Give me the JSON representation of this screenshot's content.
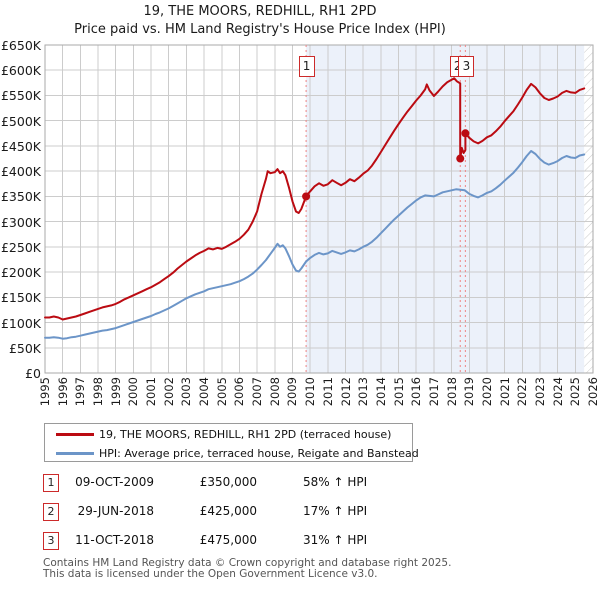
{
  "title": "19, THE MOORS, REDHILL, RH1 2PD",
  "subtitle": "Price paid vs. HM Land Registry's House Price Index (HPI)",
  "colors": {
    "property_line": "#bb0b12",
    "hpi_line": "#6c95c8",
    "marker": "#bb0b12",
    "event_dash": "#ee8585",
    "shaded_region": "#ecf1fa",
    "grid": "#cccccc",
    "frame": "#aaaaaa",
    "hatch": "#c9c9c9",
    "annotation_border": "#cc2a2a"
  },
  "chart_data": {
    "type": "line",
    "title": "19, THE MOORS, REDHILL, RH1 2PD",
    "subtitle": "Price paid vs. HM Land Registry's House Price Index (HPI)",
    "x_axis": {
      "min": 1995,
      "max": 2026,
      "tick_labels": [
        "1995",
        "1996",
        "1997",
        "1998",
        "1999",
        "2000",
        "2001",
        "2002",
        "2003",
        "2004",
        "2005",
        "2006",
        "2007",
        "2008",
        "2009",
        "2010",
        "2011",
        "2012",
        "2013",
        "2014",
        "2015",
        "2016",
        "2017",
        "2018",
        "2019",
        "2020",
        "2021",
        "2022",
        "2023",
        "2024",
        "2025",
        "2026"
      ]
    },
    "y_axis": {
      "min": 0,
      "max": 650000,
      "tick_step": 50000,
      "tick_labels": [
        "£0",
        "£50K",
        "£100K",
        "£150K",
        "£200K",
        "£250K",
        "£300K",
        "£350K",
        "£400K",
        "£450K",
        "£500K",
        "£550K",
        "£600K",
        "£650K"
      ]
    },
    "shaded_region_start_year": 2009.77,
    "hatch_start_year": 2025.5,
    "grid": true,
    "legend_position": "below",
    "series": [
      {
        "name": "19, THE MOORS, REDHILL, RH1 2PD (terraced house)",
        "color_key": "property_line",
        "points": [
          [
            1995,
            110000
          ],
          [
            1995.25,
            110000
          ],
          [
            1995.5,
            112000
          ],
          [
            1995.75,
            110000
          ],
          [
            1996,
            106000
          ],
          [
            1996.25,
            108000
          ],
          [
            1996.5,
            110000
          ],
          [
            1996.75,
            112000
          ],
          [
            1997,
            115000
          ],
          [
            1997.25,
            118000
          ],
          [
            1997.5,
            121000
          ],
          [
            1997.75,
            124000
          ],
          [
            1998,
            127000
          ],
          [
            1998.25,
            130000
          ],
          [
            1998.5,
            132000
          ],
          [
            1998.75,
            134000
          ],
          [
            1999,
            137000
          ],
          [
            1999.25,
            141000
          ],
          [
            1999.5,
            146000
          ],
          [
            1999.75,
            150000
          ],
          [
            2000,
            154000
          ],
          [
            2000.25,
            158000
          ],
          [
            2000.5,
            162000
          ],
          [
            2000.75,
            166000
          ],
          [
            2001,
            170000
          ],
          [
            2001.25,
            175000
          ],
          [
            2001.5,
            180000
          ],
          [
            2001.75,
            186000
          ],
          [
            2002,
            192000
          ],
          [
            2002.25,
            199000
          ],
          [
            2002.5,
            207000
          ],
          [
            2002.75,
            214000
          ],
          [
            2003,
            221000
          ],
          [
            2003.25,
            227000
          ],
          [
            2003.5,
            233000
          ],
          [
            2003.75,
            238000
          ],
          [
            2004,
            242000
          ],
          [
            2004.25,
            247000
          ],
          [
            2004.5,
            245000
          ],
          [
            2004.75,
            248000
          ],
          [
            2005,
            246000
          ],
          [
            2005.25,
            250000
          ],
          [
            2005.5,
            255000
          ],
          [
            2005.75,
            260000
          ],
          [
            2006,
            266000
          ],
          [
            2006.25,
            274000
          ],
          [
            2006.5,
            284000
          ],
          [
            2006.75,
            300000
          ],
          [
            2007,
            320000
          ],
          [
            2007.25,
            355000
          ],
          [
            2007.5,
            385000
          ],
          [
            2007.6,
            400000
          ],
          [
            2007.75,
            396000
          ],
          [
            2008,
            398000
          ],
          [
            2008.15,
            404000
          ],
          [
            2008.3,
            396000
          ],
          [
            2008.45,
            400000
          ],
          [
            2008.6,
            392000
          ],
          [
            2008.8,
            368000
          ],
          [
            2009,
            340000
          ],
          [
            2009.2,
            320000
          ],
          [
            2009.35,
            317000
          ],
          [
            2009.5,
            325000
          ],
          [
            2009.77,
            350000
          ],
          [
            2010,
            360000
          ],
          [
            2010.25,
            370000
          ],
          [
            2010.5,
            376000
          ],
          [
            2010.75,
            371000
          ],
          [
            2011,
            374000
          ],
          [
            2011.25,
            382000
          ],
          [
            2011.5,
            377000
          ],
          [
            2011.75,
            372000
          ],
          [
            2012,
            377000
          ],
          [
            2012.25,
            384000
          ],
          [
            2012.5,
            380000
          ],
          [
            2012.75,
            387000
          ],
          [
            2013,
            395000
          ],
          [
            2013.25,
            401000
          ],
          [
            2013.5,
            411000
          ],
          [
            2013.75,
            424000
          ],
          [
            2014,
            438000
          ],
          [
            2014.25,
            452000
          ],
          [
            2014.5,
            466000
          ],
          [
            2014.75,
            480000
          ],
          [
            2015,
            493000
          ],
          [
            2015.25,
            506000
          ],
          [
            2015.5,
            518000
          ],
          [
            2015.75,
            529000
          ],
          [
            2016,
            540000
          ],
          [
            2016.25,
            550000
          ],
          [
            2016.5,
            562000
          ],
          [
            2016.6,
            572000
          ],
          [
            2016.75,
            560000
          ],
          [
            2017,
            549000
          ],
          [
            2017.25,
            558000
          ],
          [
            2017.5,
            568000
          ],
          [
            2017.75,
            576000
          ],
          [
            2018,
            581000
          ],
          [
            2018.15,
            584000
          ],
          [
            2018.3,
            578000
          ],
          [
            2018.49,
            574000
          ],
          [
            2018.49,
            425000
          ],
          [
            2018.58,
            446000
          ],
          [
            2018.68,
            436000
          ],
          [
            2018.78,
            442000
          ],
          [
            2018.78,
            475000
          ],
          [
            2019,
            466000
          ],
          [
            2019.25,
            459000
          ],
          [
            2019.5,
            455000
          ],
          [
            2019.75,
            460000
          ],
          [
            2020,
            467000
          ],
          [
            2020.25,
            471000
          ],
          [
            2020.5,
            479000
          ],
          [
            2020.75,
            488000
          ],
          [
            2021,
            499000
          ],
          [
            2021.25,
            509000
          ],
          [
            2021.5,
            519000
          ],
          [
            2021.75,
            532000
          ],
          [
            2022,
            546000
          ],
          [
            2022.25,
            561000
          ],
          [
            2022.5,
            573000
          ],
          [
            2022.75,
            566000
          ],
          [
            2023,
            554000
          ],
          [
            2023.25,
            545000
          ],
          [
            2023.5,
            541000
          ],
          [
            2023.75,
            544000
          ],
          [
            2024,
            548000
          ],
          [
            2024.25,
            555000
          ],
          [
            2024.5,
            559000
          ],
          [
            2024.75,
            556000
          ],
          [
            2025,
            555000
          ],
          [
            2025.25,
            561000
          ],
          [
            2025.5,
            564000
          ]
        ]
      },
      {
        "name": "HPI: Average price, terraced house, Reigate and Banstead",
        "color_key": "hpi_line",
        "points": [
          [
            1995,
            70000
          ],
          [
            1995.25,
            70000
          ],
          [
            1995.5,
            71000
          ],
          [
            1995.75,
            70000
          ],
          [
            1996,
            68000
          ],
          [
            1996.25,
            69000
          ],
          [
            1996.5,
            71000
          ],
          [
            1996.75,
            72000
          ],
          [
            1997,
            74000
          ],
          [
            1997.25,
            76000
          ],
          [
            1997.5,
            78000
          ],
          [
            1997.75,
            80000
          ],
          [
            1998,
            82000
          ],
          [
            1998.25,
            84000
          ],
          [
            1998.5,
            85000
          ],
          [
            1998.75,
            87000
          ],
          [
            1999,
            89000
          ],
          [
            1999.25,
            92000
          ],
          [
            1999.5,
            95000
          ],
          [
            1999.75,
            98000
          ],
          [
            2000,
            101000
          ],
          [
            2000.25,
            104000
          ],
          [
            2000.5,
            107000
          ],
          [
            2000.75,
            110000
          ],
          [
            2001,
            113000
          ],
          [
            2001.25,
            117000
          ],
          [
            2001.5,
            120000
          ],
          [
            2001.75,
            124000
          ],
          [
            2002,
            128000
          ],
          [
            2002.25,
            133000
          ],
          [
            2002.5,
            138000
          ],
          [
            2002.75,
            143000
          ],
          [
            2003,
            148000
          ],
          [
            2003.25,
            152000
          ],
          [
            2003.5,
            156000
          ],
          [
            2003.75,
            159000
          ],
          [
            2004,
            162000
          ],
          [
            2004.25,
            166000
          ],
          [
            2004.5,
            168000
          ],
          [
            2004.75,
            170000
          ],
          [
            2005,
            172000
          ],
          [
            2005.25,
            174000
          ],
          [
            2005.5,
            176000
          ],
          [
            2005.75,
            179000
          ],
          [
            2006,
            182000
          ],
          [
            2006.25,
            186000
          ],
          [
            2006.5,
            191000
          ],
          [
            2006.75,
            197000
          ],
          [
            2007,
            205000
          ],
          [
            2007.25,
            214000
          ],
          [
            2007.5,
            224000
          ],
          [
            2007.75,
            236000
          ],
          [
            2008,
            248000
          ],
          [
            2008.15,
            256000
          ],
          [
            2008.3,
            250000
          ],
          [
            2008.45,
            253000
          ],
          [
            2008.6,
            247000
          ],
          [
            2008.8,
            232000
          ],
          [
            2009,
            215000
          ],
          [
            2009.2,
            203000
          ],
          [
            2009.35,
            201000
          ],
          [
            2009.5,
            207000
          ],
          [
            2009.77,
            221000
          ],
          [
            2010,
            228000
          ],
          [
            2010.25,
            234000
          ],
          [
            2010.5,
            238000
          ],
          [
            2010.75,
            235000
          ],
          [
            2011,
            237000
          ],
          [
            2011.25,
            242000
          ],
          [
            2011.5,
            239000
          ],
          [
            2011.75,
            236000
          ],
          [
            2012,
            239000
          ],
          [
            2012.25,
            243000
          ],
          [
            2012.5,
            241000
          ],
          [
            2012.75,
            245000
          ],
          [
            2013,
            250000
          ],
          [
            2013.25,
            254000
          ],
          [
            2013.5,
            260000
          ],
          [
            2013.75,
            268000
          ],
          [
            2014,
            277000
          ],
          [
            2014.25,
            286000
          ],
          [
            2014.5,
            295000
          ],
          [
            2014.75,
            304000
          ],
          [
            2015,
            312000
          ],
          [
            2015.25,
            320000
          ],
          [
            2015.5,
            328000
          ],
          [
            2015.75,
            335000
          ],
          [
            2016,
            342000
          ],
          [
            2016.25,
            348000
          ],
          [
            2016.5,
            352000
          ],
          [
            2016.75,
            351000
          ],
          [
            2017,
            350000
          ],
          [
            2017.25,
            354000
          ],
          [
            2017.5,
            358000
          ],
          [
            2017.75,
            360000
          ],
          [
            2018,
            362000
          ],
          [
            2018.25,
            364000
          ],
          [
            2018.5,
            363000
          ],
          [
            2018.75,
            362000
          ],
          [
            2019,
            355000
          ],
          [
            2019.25,
            351000
          ],
          [
            2019.5,
            348000
          ],
          [
            2019.75,
            352000
          ],
          [
            2020,
            357000
          ],
          [
            2020.25,
            360000
          ],
          [
            2020.5,
            366000
          ],
          [
            2020.75,
            373000
          ],
          [
            2021,
            381000
          ],
          [
            2021.25,
            389000
          ],
          [
            2021.5,
            397000
          ],
          [
            2021.75,
            407000
          ],
          [
            2022,
            418000
          ],
          [
            2022.25,
            430000
          ],
          [
            2022.5,
            440000
          ],
          [
            2022.75,
            434000
          ],
          [
            2023,
            424000
          ],
          [
            2023.25,
            417000
          ],
          [
            2023.5,
            413000
          ],
          [
            2023.75,
            416000
          ],
          [
            2024,
            420000
          ],
          [
            2024.25,
            426000
          ],
          [
            2024.5,
            430000
          ],
          [
            2024.75,
            427000
          ],
          [
            2025,
            426000
          ],
          [
            2025.25,
            431000
          ],
          [
            2025.5,
            433000
          ]
        ]
      }
    ],
    "sales": [
      {
        "n": "1",
        "date": "09-OCT-2009",
        "price": "£350,000",
        "vs_hpi": "58% ↑ HPI",
        "year": 2009.77,
        "value": 350000
      },
      {
        "n": "2",
        "date": "29-JUN-2018",
        "price": "£425,000",
        "vs_hpi": "17% ↑ HPI",
        "year": 2018.49,
        "value": 425000
      },
      {
        "n": "3",
        "date": "11-OCT-2018",
        "price": "£475,000",
        "vs_hpi": "31% ↑ HPI",
        "year": 2018.78,
        "value": 475000
      }
    ]
  },
  "footer": {
    "line1": "Contains HM Land Registry data © Crown copyright and database right 2025.",
    "line2": "This data is licensed under the Open Government Licence v3.0."
  }
}
